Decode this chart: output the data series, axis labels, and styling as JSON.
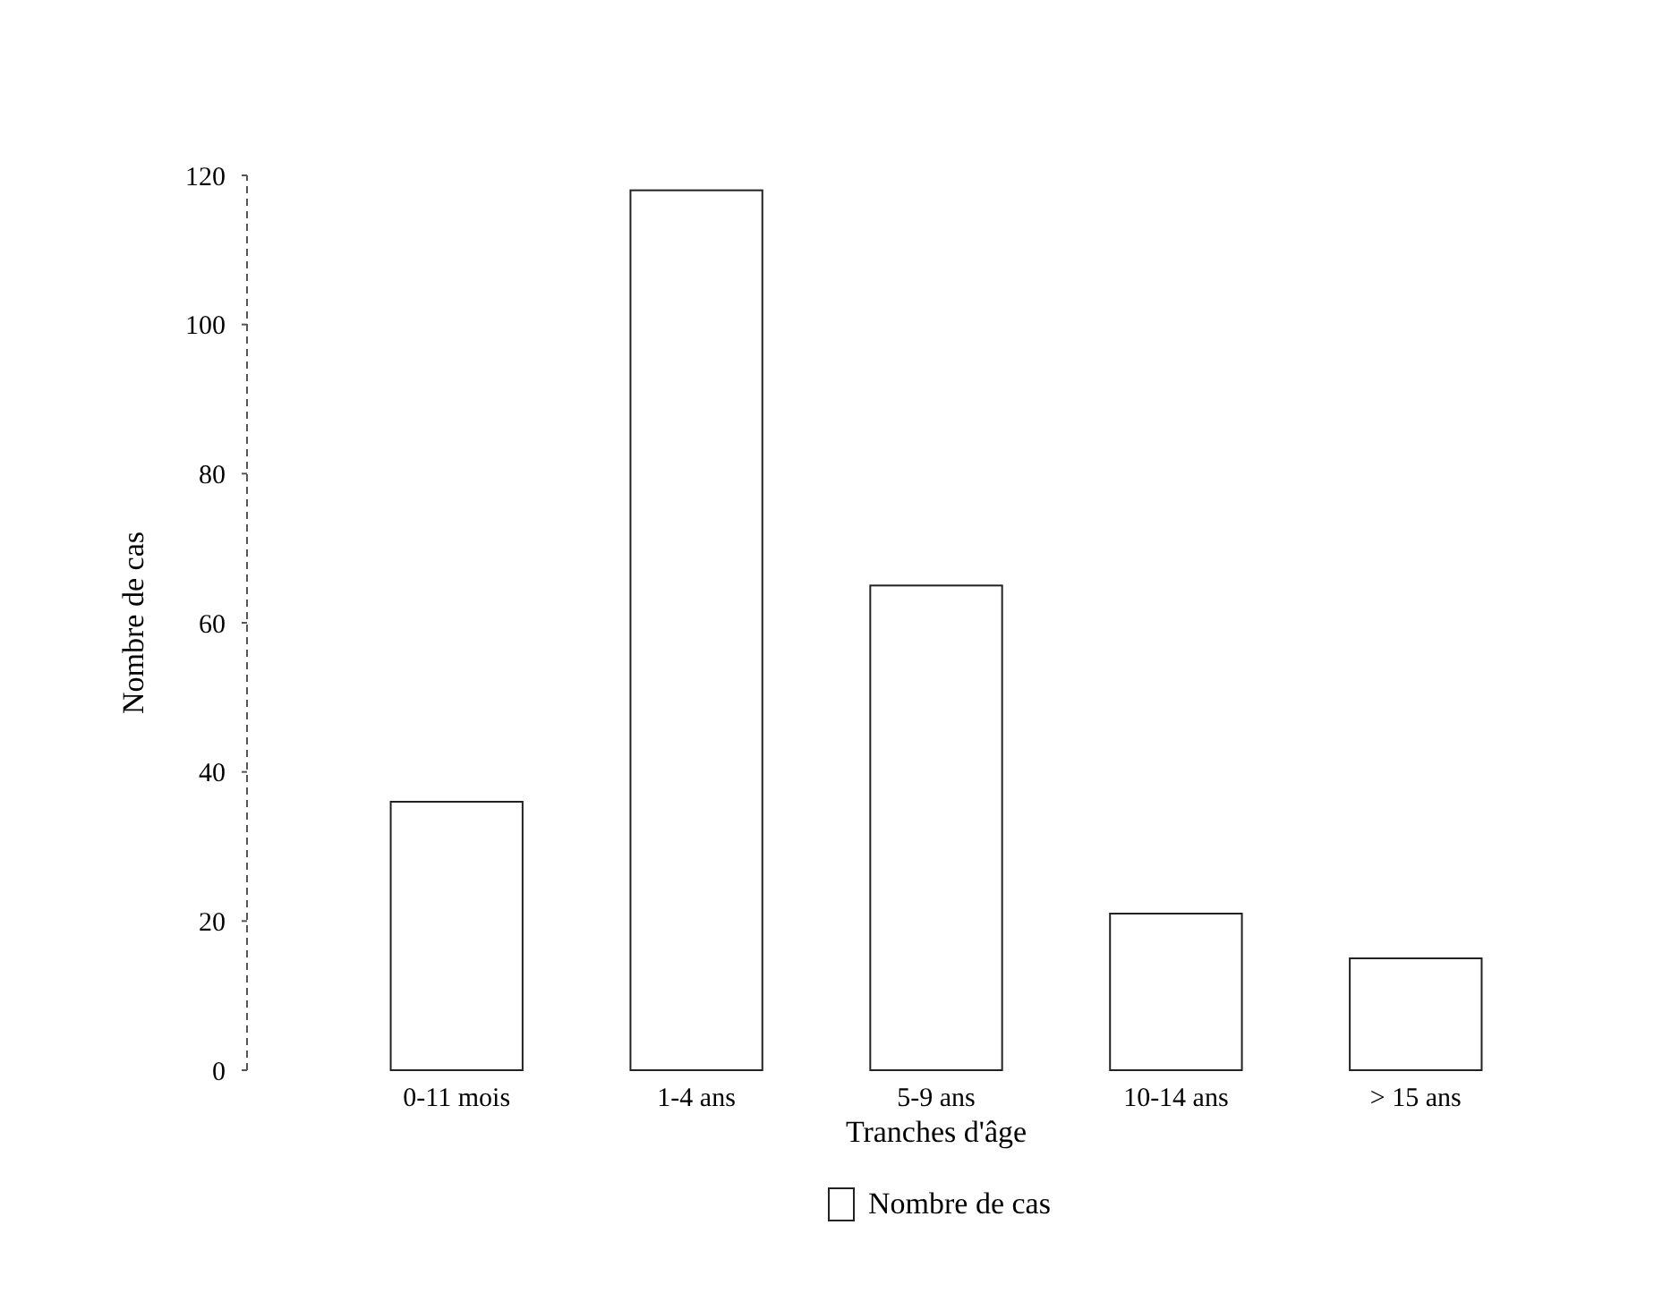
{
  "chart_data": {
    "type": "bar",
    "xlabel": "Tranches d'âge",
    "ylabel": "Nombre de cas",
    "categories": [
      "0-11 mois",
      "1-4 ans",
      "5-9 ans",
      "10-14 ans",
      "> 15 ans"
    ],
    "series": [
      {
        "name": "Nombre de cas",
        "color": "#ffffff",
        "values": [
          36,
          118,
          65,
          21,
          15
        ]
      }
    ],
    "ylim": [
      0,
      120
    ],
    "yticks": [
      0,
      20,
      40,
      60,
      80,
      100,
      120
    ],
    "legend": "bottom"
  }
}
